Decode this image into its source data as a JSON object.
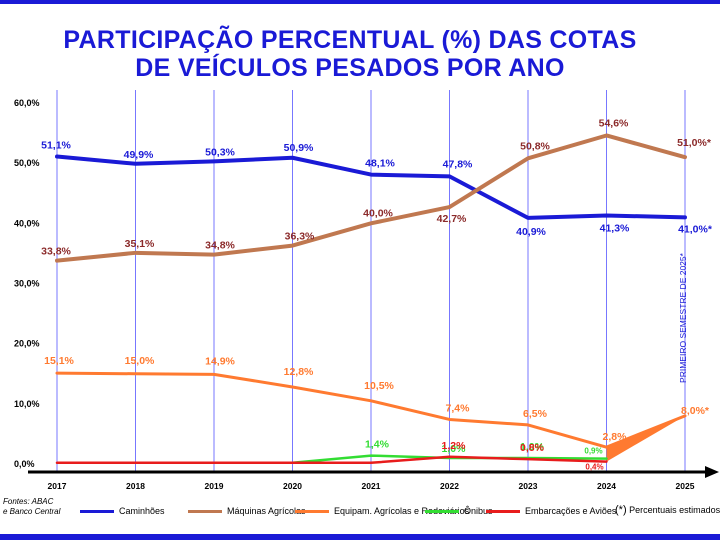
{
  "title_line1": "PARTICIPAÇÃO PERCENTUAL (%)  DAS COTAS",
  "title_line2": "DE VEÍCULOS PESADOS POR ANO",
  "source_line1": "Fontes: ABAC",
  "source_line2": "e Banco Central",
  "footnote_symbol": "(*)",
  "footnote_text": "Percentuais estimados",
  "colors": {
    "title": "#1a1ad6",
    "frame": "#1a1ad6",
    "gridline": "#7777ff",
    "axis": "#000000"
  },
  "chart_data": {
    "type": "line",
    "title": "PARTICIPAÇÃO PERCENTUAL (%)  DAS COTAS DE VEÍCULOS PESADOS POR ANO",
    "xlabel": "",
    "ylabel": "",
    "categories": [
      "2017",
      "2018",
      "2019",
      "2020",
      "2021",
      "2022",
      "2023",
      "2024",
      "2025"
    ],
    "ylim": [
      0,
      60
    ],
    "yticks": [
      "0,0%",
      "10,0%",
      "20,0%",
      "30,0%",
      "40,0%",
      "50,0%",
      "60,0%"
    ],
    "grid": "vertical",
    "vertical_annotation": "PRIMEIRO SEMESTRE DE 2025*",
    "series": [
      {
        "name": "Caminhões",
        "color": "#1a1ad6",
        "values": [
          51.1,
          49.9,
          50.3,
          50.9,
          48.1,
          47.8,
          40.9,
          41.3,
          41.0
        ],
        "labels": [
          "51,1%",
          "49,9%",
          "50,3%",
          "50,9%",
          "48,1%",
          "47,8%",
          "40,9%",
          "41,3%",
          "41,0%*"
        ]
      },
      {
        "name": "Máquinas Agrícolas",
        "color": "#c07850",
        "label_color": "#8b2a2a",
        "values": [
          33.8,
          35.1,
          34.8,
          36.3,
          40.0,
          42.7,
          50.8,
          54.6,
          51.0
        ],
        "labels": [
          "33,8%",
          "35,1%",
          "34,8%",
          "36,3%",
          "40,0%",
          "42,7%",
          "50,8%",
          "54,6%",
          "51,0%*"
        ]
      },
      {
        "name": "Equipam. Agrícolas e Rodoviários",
        "color": "#ff7a30",
        "values": [
          15.1,
          15.0,
          14.9,
          12.8,
          10.5,
          7.4,
          6.5,
          2.8,
          8.0
        ],
        "labels": [
          "15,1%",
          "15,0%",
          "14,9%",
          "12,8%",
          "10,5%",
          "7,4%",
          "6,5%",
          "2,8%",
          "8,0%*"
        ]
      },
      {
        "name": "Ônibus",
        "color": "#33dd33",
        "values": [
          null,
          null,
          null,
          0.2,
          1.4,
          1.0,
          1.0,
          0.9,
          null
        ],
        "labels": [
          null,
          null,
          null,
          null,
          "1,4%",
          "1,0%",
          "1,0%",
          "0,9%",
          null
        ]
      },
      {
        "name": "Embarcações e Aviões",
        "color": "#e81c1c",
        "values": [
          0.2,
          0.2,
          0.2,
          0.2,
          0.2,
          1.2,
          0.8,
          0.4,
          null
        ],
        "labels": [
          null,
          null,
          null,
          null,
          null,
          "1,2%",
          "0,8%",
          "0,4%",
          null
        ]
      }
    ]
  }
}
